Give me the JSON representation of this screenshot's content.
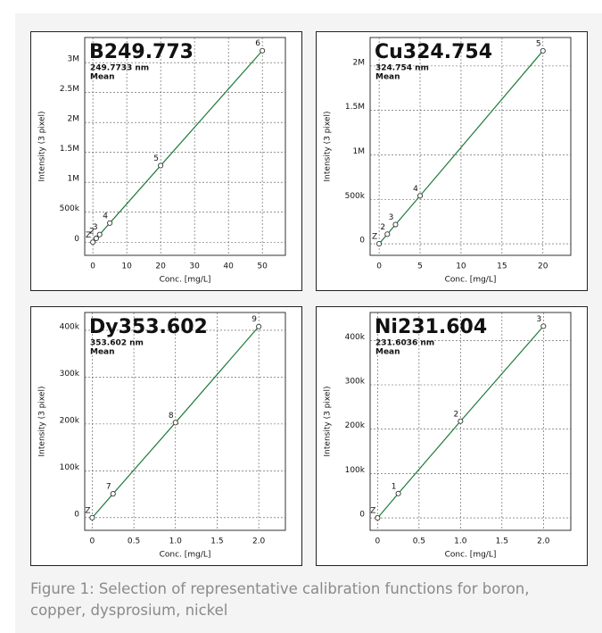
{
  "chart_data": [
    {
      "type": "line",
      "title": "B249.773",
      "subtitle": "249.7733 nm",
      "annotation": "Mean",
      "xlabel": "Conc. [mg/L]",
      "ylabel": "Intensity (3 pixel)",
      "x": [
        0,
        1,
        2,
        5,
        20,
        50
      ],
      "series": [
        {
          "color": "#1f7a3c",
          "values": [
            0,
            64000,
            128000,
            320000,
            1280000,
            3200000
          ],
          "point_labels": [
            "Z",
            "2",
            "3",
            "4",
            "5",
            "6"
          ]
        }
      ],
      "xlim": [
        -2.4,
        56.8
      ],
      "xticks": [
        0,
        10,
        20,
        30,
        40,
        50
      ],
      "ylim": [
        -220000,
        3420000
      ],
      "yticks": [
        0,
        {
          "value": 500000,
          "label": "500k"
        },
        {
          "value": 1000000,
          "label": "1M"
        },
        {
          "value": 1500000,
          "label": "1.5M"
        },
        {
          "value": 2000000,
          "label": "2M"
        },
        {
          "value": 2500000,
          "label": "2.5M"
        },
        {
          "value": 3000000,
          "label": "3M"
        }
      ],
      "grid": true
    },
    {
      "type": "line",
      "title": "Cu324.754",
      "subtitle": "324.754 nm",
      "annotation": "Mean",
      "xlabel": "Conc. [mg/L]",
      "ylabel": "Intensity (3 pixel)",
      "x": [
        0,
        1,
        2,
        5,
        20
      ],
      "series": [
        {
          "color": "#1f7a3c",
          "values": [
            0,
            108000,
            216000,
            540000,
            2170000
          ],
          "point_labels": [
            "Z",
            "2",
            "3",
            "4",
            "5"
          ]
        }
      ],
      "xlim": [
        -1.1,
        23.4
      ],
      "xticks": [
        0,
        5,
        10,
        15,
        20
      ],
      "ylim": [
        -130000,
        2320000
      ],
      "yticks": [
        0,
        {
          "value": 500000,
          "label": "500k"
        },
        {
          "value": 1000000,
          "label": "1M"
        },
        {
          "value": 1500000,
          "label": "1.5M"
        },
        {
          "value": 2000000,
          "label": "2M"
        }
      ],
      "grid": true
    },
    {
      "type": "line",
      "title": "Dy353.602",
      "subtitle": "353.602 nm",
      "annotation": "Mean",
      "xlabel": "Conc. [mg/L]",
      "ylabel": "Intensity (3 pixel)",
      "x": [
        0,
        0.25,
        1,
        2
      ],
      "series": [
        {
          "color": "#1f7a3c",
          "values": [
            0,
            51000,
            203000,
            408000
          ],
          "point_labels": [
            "Z",
            "7",
            "8",
            "9"
          ]
        }
      ],
      "xlim": [
        -0.09,
        2.32
      ],
      "xticks": [
        0,
        0.5,
        {
          "value": 1,
          "label": "1.0"
        },
        1.5,
        {
          "value": 2,
          "label": "2.0"
        }
      ],
      "ylim": [
        -27000,
        438000
      ],
      "yticks": [
        0,
        {
          "value": 100000,
          "label": "100k"
        },
        {
          "value": 200000,
          "label": "200k"
        },
        {
          "value": 300000,
          "label": "300k"
        },
        {
          "value": 400000,
          "label": "400k"
        }
      ],
      "grid": true
    },
    {
      "type": "line",
      "title": "Ni231.604",
      "subtitle": "231.6036 nm",
      "annotation": "Mean",
      "xlabel": "Conc. [mg/L]",
      "ylabel": "Intensity (3 pixel)",
      "x": [
        0,
        0.25,
        1,
        2
      ],
      "series": [
        {
          "color": "#1f7a3c",
          "values": [
            0,
            55000,
            218000,
            432000
          ],
          "point_labels": [
            "Z",
            "1",
            "2",
            "3"
          ]
        }
      ],
      "xlim": [
        -0.09,
        2.33
      ],
      "xticks": [
        0,
        0.5,
        {
          "value": 1,
          "label": "1.0"
        },
        1.5,
        {
          "value": 2,
          "label": "2.0"
        }
      ],
      "ylim": [
        -28000,
        463000
      ],
      "yticks": [
        0,
        {
          "value": 100000,
          "label": "100k"
        },
        {
          "value": 200000,
          "label": "200k"
        },
        {
          "value": 300000,
          "label": "300k"
        },
        {
          "value": 400000,
          "label": "400k"
        }
      ],
      "grid": true
    }
  ],
  "caption": "Figure 1: Selection of representative calibration functions for boron, copper, dysprosium, nickel"
}
